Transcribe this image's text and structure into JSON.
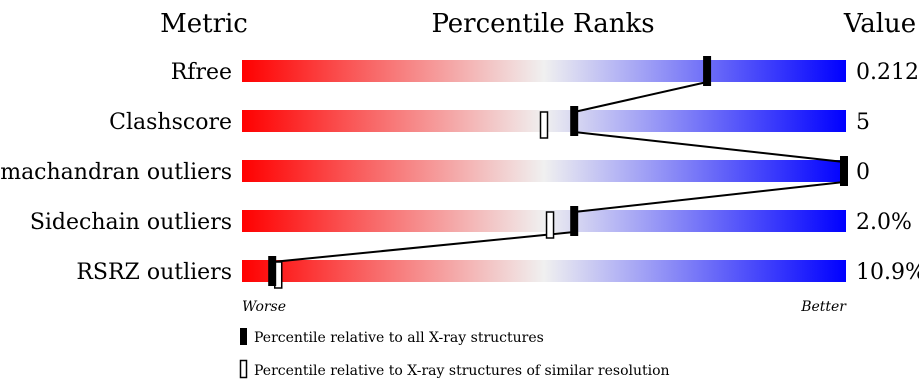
{
  "headers": {
    "metric": "Metric",
    "ranks": "Percentile Ranks",
    "value": "Value"
  },
  "axis": {
    "worse": "Worse",
    "better": "Better"
  },
  "legend": {
    "all": "Percentile relative to all X-ray structures",
    "similar": "Percentile relative to X-ray structures of similar resolution"
  },
  "colors": {
    "worse": "#ff0000",
    "middle": "#f0f0f0",
    "better": "#0000ff",
    "marker": "#000000"
  },
  "chart_data": {
    "type": "percentile-bar",
    "xlim": [
      0,
      100
    ],
    "metrics": [
      {
        "name": "Rfree",
        "value": "0.212",
        "percentile_all": 77,
        "percentile_similar": null
      },
      {
        "name": "Clashscore",
        "value": "5",
        "percentile_all": 55,
        "percentile_similar": 50
      },
      {
        "name": "Ramachandran outliers",
        "value": "0",
        "percentile_all": 100,
        "percentile_similar": null
      },
      {
        "name": "Sidechain outliers",
        "value": "2.0%",
        "percentile_all": 55,
        "percentile_similar": 51
      },
      {
        "name": "RSRZ outliers",
        "value": "10.9%",
        "percentile_all": 5,
        "percentile_similar": 6
      }
    ]
  }
}
